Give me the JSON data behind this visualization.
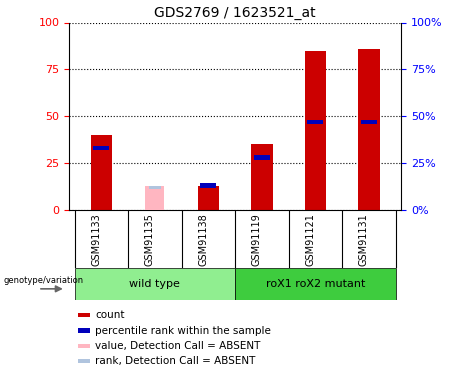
{
  "title": "GDS2769 / 1623521_at",
  "categories": [
    "GSM91133",
    "GSM91135",
    "GSM91138",
    "GSM91119",
    "GSM91121",
    "GSM91131"
  ],
  "red_values": [
    40,
    0,
    13,
    35,
    85,
    86
  ],
  "blue_values": [
    33,
    0,
    13,
    28,
    47,
    47
  ],
  "pink_values": [
    0,
    13,
    0,
    0,
    0,
    0
  ],
  "lightblue_values": [
    0,
    12,
    0,
    0,
    0,
    0
  ],
  "groups": [
    {
      "label": "wild type",
      "start": 0,
      "end": 3,
      "color": "#90EE90"
    },
    {
      "label": "roX1 roX2 mutant",
      "start": 3,
      "end": 6,
      "color": "#3ECC3E"
    }
  ],
  "ylim": [
    0,
    100
  ],
  "yticks": [
    0,
    25,
    50,
    75,
    100
  ],
  "red_color": "#CC0000",
  "blue_color": "#0000BB",
  "pink_color": "#FFB6C1",
  "lightblue_color": "#B0C4DE",
  "legend_items": [
    {
      "label": "count",
      "color": "#CC0000"
    },
    {
      "label": "percentile rank within the sample",
      "color": "#0000BB"
    },
    {
      "label": "value, Detection Call = ABSENT",
      "color": "#FFB6C1"
    },
    {
      "label": "rank, Detection Call = ABSENT",
      "color": "#B0C4DE"
    }
  ],
  "tick_label_area_color": "#D3D3D3",
  "bar_width": 0.25
}
